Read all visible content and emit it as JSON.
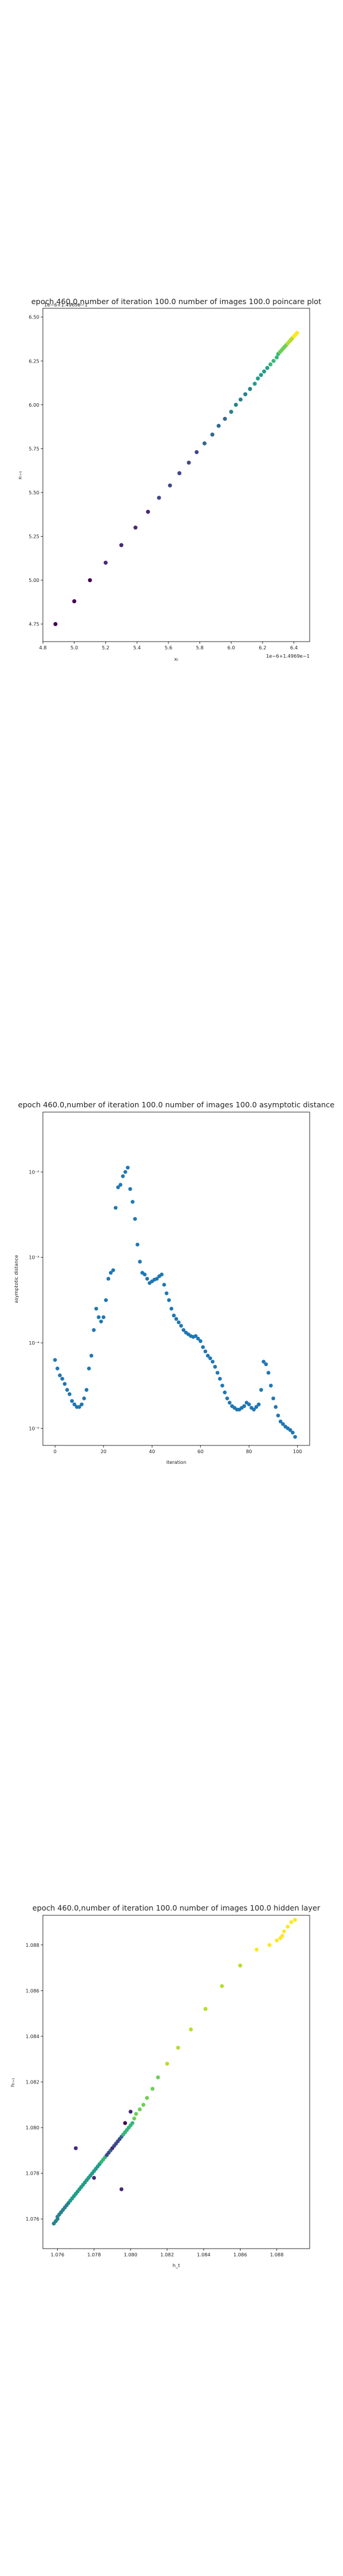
{
  "chart_data": [
    {
      "type": "scatter",
      "title": "epoch 460.0,number of iteration 100.0 number of images 100.0 poincare plot",
      "xlabel": "xₜ",
      "ylabel": "xₜ₊₁",
      "offset_label": "1e−6+1.4969e−1",
      "offset_label_y": "1e−6+1.4969e−1",
      "colormap": "viridis",
      "xlim": [
        4.8,
        6.5
      ],
      "ylim": [
        4.65,
        6.55
      ],
      "x_ticks": [
        "4.8",
        "5.0",
        "5.2",
        "5.4",
        "5.6",
        "5.8",
        "6.0",
        "6.2",
        "6.4"
      ],
      "y_ticks": [
        "4.75",
        "5.00",
        "5.25",
        "5.50",
        "5.75",
        "6.00",
        "6.25",
        "6.50"
      ],
      "x": [
        4.88,
        5.0,
        5.1,
        5.2,
        5.3,
        5.39,
        5.47,
        5.54,
        5.61,
        5.67,
        5.73,
        5.78,
        5.83,
        5.88,
        5.92,
        5.96,
        6.0,
        6.03,
        6.06,
        6.09,
        6.12,
        6.15,
        6.17,
        6.19,
        6.21,
        6.23,
        6.25,
        6.27,
        6.29,
        6.3,
        6.31,
        6.32,
        6.33,
        6.34,
        6.35,
        6.36,
        6.37,
        6.38,
        6.39,
        6.4,
        6.41,
        6.42
      ],
      "y": [
        4.75,
        4.88,
        5.0,
        5.1,
        5.2,
        5.3,
        5.39,
        5.47,
        5.54,
        5.61,
        5.67,
        5.73,
        5.78,
        5.83,
        5.88,
        5.92,
        5.96,
        6.0,
        6.03,
        6.06,
        6.09,
        6.12,
        6.15,
        6.17,
        6.19,
        6.21,
        6.23,
        6.25,
        6.27,
        6.29,
        6.3,
        6.31,
        6.32,
        6.33,
        6.34,
        6.35,
        6.36,
        6.37,
        6.38,
        6.39,
        6.4,
        6.41
      ]
    },
    {
      "type": "scatter",
      "title": "epoch 460.0,number of iteration 100.0  number of images 100.0 asymptotic distance",
      "xlabel": "iteration",
      "ylabel": "asymptotic distance",
      "yscale": "log",
      "color": "#1f77b4",
      "xlim": [
        -5,
        105
      ],
      "ylim_log10": [
        -5.2,
        -1.3
      ],
      "x_ticks": [
        "0",
        "20",
        "40",
        "60",
        "80",
        "100"
      ],
      "y_ticks": [
        "10⁻⁵",
        "10⁻⁴",
        "10⁻³",
        "10⁻²"
      ],
      "x": [
        0,
        1,
        2,
        3,
        4,
        5,
        6,
        7,
        8,
        9,
        10,
        11,
        12,
        13,
        14,
        15,
        16,
        17,
        18,
        19,
        20,
        21,
        22,
        23,
        24,
        25,
        26,
        27,
        28,
        29,
        30,
        31,
        32,
        33,
        34,
        35,
        36,
        37,
        38,
        39,
        40,
        41,
        42,
        43,
        44,
        45,
        46,
        47,
        48,
        49,
        50,
        51,
        52,
        53,
        54,
        55,
        56,
        57,
        58,
        59,
        60,
        61,
        62,
        63,
        64,
        65,
        66,
        67,
        68,
        69,
        70,
        71,
        72,
        73,
        74,
        75,
        76,
        77,
        78,
        79,
        80,
        81,
        82,
        83,
        84,
        85,
        86,
        87,
        88,
        89,
        90,
        91,
        92,
        93,
        94,
        95,
        96,
        97,
        98,
        99
      ],
      "y_log10": [
        -4.2,
        -4.3,
        -4.38,
        -4.42,
        -4.48,
        -4.55,
        -4.6,
        -4.68,
        -4.72,
        -4.75,
        -4.75,
        -4.72,
        -4.65,
        -4.55,
        -4.3,
        -4.15,
        -3.85,
        -3.6,
        -3.7,
        -3.75,
        -3.7,
        -3.5,
        -3.25,
        -3.18,
        -3.15,
        -2.42,
        -2.18,
        -2.15,
        -2.05,
        -2.0,
        -1.95,
        -2.2,
        -2.35,
        -2.55,
        -2.85,
        -3.05,
        -3.18,
        -3.2,
        -3.25,
        -3.3,
        -3.28,
        -3.26,
        -3.25,
        -3.22,
        -3.2,
        -3.32,
        -3.42,
        -3.5,
        -3.6,
        -3.68,
        -3.72,
        -3.76,
        -3.8,
        -3.85,
        -3.88,
        -3.9,
        -3.92,
        -3.93,
        -3.92,
        -3.95,
        -3.98,
        -4.05,
        -4.1,
        -4.15,
        -4.18,
        -4.22,
        -4.28,
        -4.35,
        -4.42,
        -4.5,
        -4.58,
        -4.65,
        -4.7,
        -4.74,
        -4.76,
        -4.78,
        -4.78,
        -4.76,
        -4.74,
        -4.7,
        -4.72,
        -4.76,
        -4.78,
        -4.75,
        -4.72,
        -4.55,
        -4.22,
        -4.25,
        -4.35,
        -4.5,
        -4.65,
        -4.75,
        -4.85,
        -4.92,
        -4.95,
        -4.98,
        -5.0,
        -5.02,
        -5.05,
        -5.1
      ]
    },
    {
      "type": "scatter",
      "title": "epoch 460.0,number of iteration 100.0  number of images 100.0 hidden layer",
      "xlabel": "h_t",
      "ylabel": "hₜ₊₁",
      "colormap": "viridis",
      "xlim": [
        1.0752,
        1.0898
      ],
      "ylim": [
        1.0747,
        1.0893
      ],
      "x_ticks": [
        "1.076",
        "1.078",
        "1.080",
        "1.082",
        "1.084",
        "1.086",
        "1.088"
      ],
      "y_ticks": [
        "1.076",
        "1.078",
        "1.080",
        "1.082",
        "1.084",
        "1.086",
        "1.088"
      ],
      "x": [
        1.0758,
        1.0759,
        1.076,
        1.076,
        1.0761,
        1.0762,
        1.0763,
        1.0764,
        1.0765,
        1.0766,
        1.0767,
        1.0768,
        1.0769,
        1.077,
        1.0771,
        1.0772,
        1.0773,
        1.0774,
        1.0775,
        1.0776,
        1.0777,
        1.0778,
        1.0779,
        1.078,
        1.0781,
        1.0782,
        1.0783,
        1.0784,
        1.0785,
        1.0786,
        1.0787,
        1.0788,
        1.0789,
        1.079,
        1.0791,
        1.0792,
        1.0793,
        1.0794,
        1.0795,
        1.0796,
        1.0797,
        1.0798,
        1.0799,
        1.08,
        1.0801,
        1.0802,
        1.0803,
        1.0805,
        1.0807,
        1.0809,
        1.0812,
        1.0815,
        1.082,
        1.0826,
        1.0833,
        1.0841,
        1.085,
        1.086,
        1.0869,
        1.0876,
        1.088,
        1.0882,
        1.0883,
        1.0884,
        1.0886,
        1.0888,
        1.089,
        1.077,
        1.078,
        1.08,
        1.0797,
        1.0795
      ],
      "y": [
        1.0758,
        1.0759,
        1.076,
        1.0761,
        1.0762,
        1.0763,
        1.0764,
        1.0765,
        1.0766,
        1.0767,
        1.0768,
        1.0769,
        1.077,
        1.0771,
        1.0772,
        1.0773,
        1.0774,
        1.0775,
        1.0776,
        1.0777,
        1.0778,
        1.0779,
        1.078,
        1.0781,
        1.0782,
        1.0783,
        1.0784,
        1.0785,
        1.0786,
        1.0787,
        1.0788,
        1.0789,
        1.079,
        1.0791,
        1.0792,
        1.0793,
        1.0794,
        1.0795,
        1.0796,
        1.0797,
        1.0798,
        1.0799,
        1.08,
        1.0801,
        1.0802,
        1.0804,
        1.0806,
        1.0808,
        1.081,
        1.0813,
        1.0817,
        1.0822,
        1.0828,
        1.0835,
        1.0843,
        1.0852,
        1.0862,
        1.0871,
        1.0878,
        1.088,
        1.0882,
        1.0883,
        1.0884,
        1.0886,
        1.0888,
        1.089,
        1.0891,
        1.0791,
        1.0778,
        1.0807,
        1.0802,
        1.0773
      ],
      "c": [
        0.45,
        0.45,
        0.46,
        0.46,
        0.47,
        0.47,
        0.48,
        0.48,
        0.49,
        0.49,
        0.5,
        0.5,
        0.51,
        0.51,
        0.52,
        0.52,
        0.53,
        0.53,
        0.54,
        0.55,
        0.56,
        0.57,
        0.58,
        0.59,
        0.6,
        0.6,
        0.61,
        0.62,
        0.63,
        0.64,
        0.2,
        0.25,
        0.3,
        0.15,
        0.2,
        0.22,
        0.18,
        0.25,
        0.3,
        0.66,
        0.67,
        0.68,
        0.69,
        0.7,
        0.72,
        0.73,
        0.74,
        0.75,
        0.76,
        0.78,
        0.8,
        0.82,
        0.84,
        0.86,
        0.88,
        0.9,
        0.92,
        0.94,
        0.96,
        0.97,
        0.98,
        0.98,
        0.99,
        0.99,
        1.0,
        1.0,
        1.0,
        0.1,
        0.1,
        0.08,
        0.05,
        0.12
      ]
    }
  ]
}
